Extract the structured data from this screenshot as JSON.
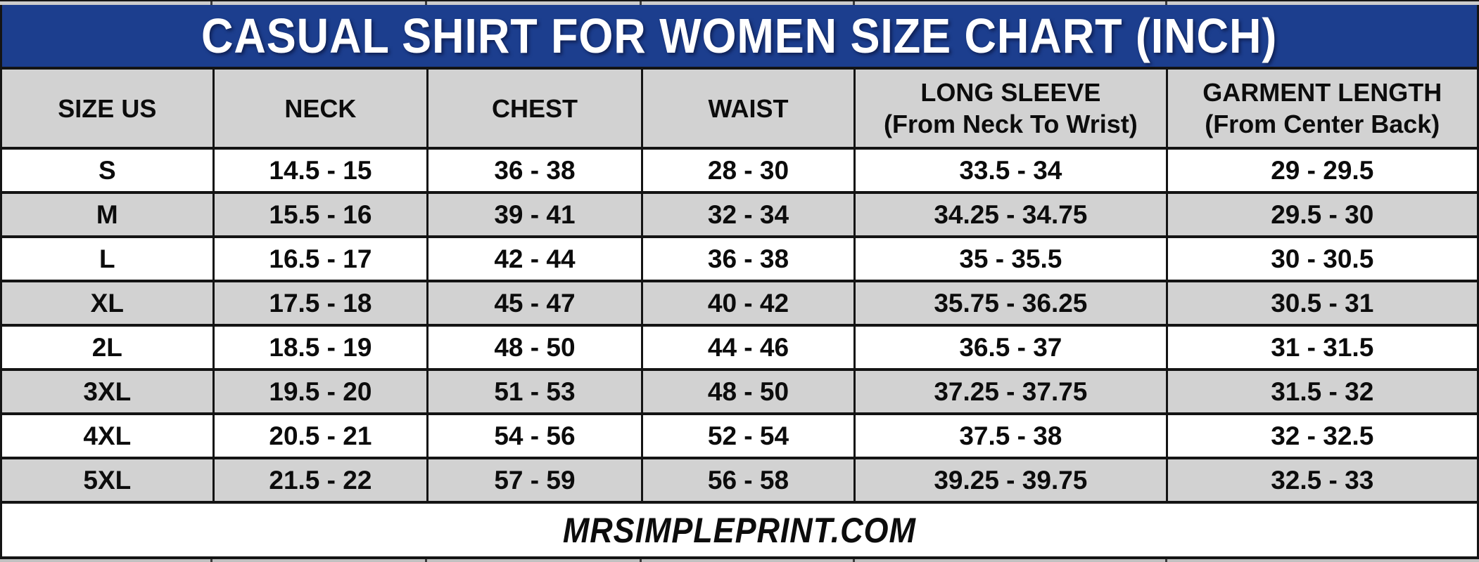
{
  "page": {
    "title": "CASUAL SHIRT FOR WOMEN SIZE CHART (INCH)",
    "footer": "MRSIMPLEPRINT.COM"
  },
  "colors": {
    "title_bg": "#1c3e8e",
    "title_text": "#ffffff",
    "header_bg": "#d2d2d2",
    "row_even_bg": "#ffffff",
    "row_odd_bg": "#d2d2d2",
    "border": "#141414",
    "text": "#0c0c0c"
  },
  "table": {
    "headers": [
      {
        "id": "size-us",
        "lines": [
          "SIZE US"
        ]
      },
      {
        "id": "neck",
        "lines": [
          "NECK"
        ]
      },
      {
        "id": "chest",
        "lines": [
          "CHEST"
        ]
      },
      {
        "id": "waist",
        "lines": [
          "WAIST"
        ]
      },
      {
        "id": "long-sleeve",
        "lines": [
          "LONG SLEEVE",
          "(From Neck To Wrist)"
        ]
      },
      {
        "id": "garment-length",
        "lines": [
          "GARMENT LENGTH",
          "(From Center Back)"
        ]
      }
    ]
  },
  "chart_data": {
    "type": "table",
    "title": "CASUAL SHIRT FOR WOMEN SIZE CHART (INCH)",
    "units": "inch",
    "columns": [
      "SIZE US",
      "NECK",
      "CHEST",
      "WAIST",
      "LONG SLEEVE (From Neck To Wrist)",
      "GARMENT LENGTH (From Center Back)"
    ],
    "rows": [
      [
        "S",
        "14.5 - 15",
        "36 - 38",
        "28 - 30",
        "33.5 - 34",
        "29 - 29.5"
      ],
      [
        "M",
        "15.5 - 16",
        "39 - 41",
        "32 - 34",
        "34.25 - 34.75",
        "29.5 - 30"
      ],
      [
        "L",
        "16.5 - 17",
        "42 - 44",
        "36 - 38",
        "35 - 35.5",
        "30 - 30.5"
      ],
      [
        "XL",
        "17.5 - 18",
        "45 - 47",
        "40 - 42",
        "35.75 - 36.25",
        "30.5 - 31"
      ],
      [
        "2L",
        "18.5 - 19",
        "48 - 50",
        "44 - 46",
        "36.5 - 37",
        "31 - 31.5"
      ],
      [
        "3XL",
        "19.5 - 20",
        "51 - 53",
        "48 - 50",
        "37.25 - 37.75",
        "31.5 - 32"
      ],
      [
        "4XL",
        "20.5 - 21",
        "54 - 56",
        "52 - 54",
        "37.5 - 38",
        "32 - 32.5"
      ],
      [
        "5XL",
        "21.5 - 22",
        "57 - 59",
        "56 - 58",
        "39.25 - 39.75",
        "32.5 - 33"
      ]
    ],
    "footer_note": "MRSIMPLEPRINT.COM"
  }
}
